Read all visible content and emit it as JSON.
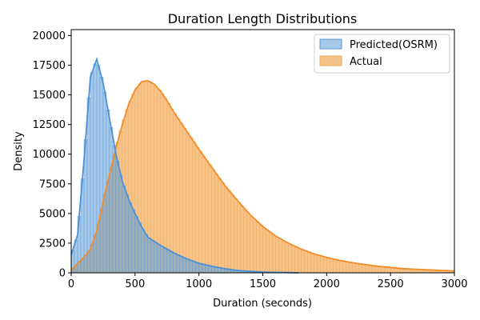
{
  "chart_data": {
    "type": "histogram",
    "title": "Duration Length Distributions",
    "xlabel": "Duration (seconds)",
    "ylabel": "Density",
    "xlim": [
      0,
      3000
    ],
    "ylim": [
      0,
      20500
    ],
    "x_ticks": [
      "0",
      "500",
      "1000",
      "1500",
      "2000",
      "2500",
      "3000"
    ],
    "y_ticks": [
      "0",
      "2500",
      "5000",
      "7500",
      "10000",
      "12500",
      "15000",
      "17500",
      "20000"
    ],
    "legend_position": "top-right",
    "series": [
      {
        "name": "Predicted(OSRM)",
        "fill_color": "#5b9bd5",
        "line_color": "#4a90d9",
        "points": [
          [
            0,
            1500
          ],
          [
            50,
            3200
          ],
          [
            100,
            9500
          ],
          [
            150,
            16500
          ],
          [
            200,
            18000
          ],
          [
            250,
            16000
          ],
          [
            300,
            13000
          ],
          [
            350,
            10000
          ],
          [
            400,
            7700
          ],
          [
            450,
            6200
          ],
          [
            500,
            5000
          ],
          [
            550,
            3900
          ],
          [
            600,
            3000
          ],
          [
            700,
            2300
          ],
          [
            800,
            1700
          ],
          [
            900,
            1200
          ],
          [
            1000,
            800
          ],
          [
            1100,
            550
          ],
          [
            1200,
            350
          ],
          [
            1300,
            200
          ],
          [
            1400,
            120
          ],
          [
            1500,
            70
          ],
          [
            1600,
            40
          ],
          [
            1700,
            20
          ],
          [
            1780,
            0
          ]
        ]
      },
      {
        "name": "Actual",
        "fill_color": "#f0a95a",
        "line_color": "#f28c28",
        "points": [
          [
            0,
            200
          ],
          [
            50,
            800
          ],
          [
            100,
            1300
          ],
          [
            150,
            2000
          ],
          [
            200,
            3500
          ],
          [
            250,
            6000
          ],
          [
            300,
            8300
          ],
          [
            350,
            10500
          ],
          [
            400,
            12500
          ],
          [
            450,
            14200
          ],
          [
            500,
            15400
          ],
          [
            550,
            16100
          ],
          [
            600,
            16200
          ],
          [
            650,
            15900
          ],
          [
            700,
            15300
          ],
          [
            750,
            14500
          ],
          [
            800,
            13600
          ],
          [
            850,
            12800
          ],
          [
            900,
            12000
          ],
          [
            950,
            11200
          ],
          [
            1000,
            10400
          ],
          [
            1100,
            8900
          ],
          [
            1200,
            7400
          ],
          [
            1300,
            6100
          ],
          [
            1400,
            4900
          ],
          [
            1500,
            3900
          ],
          [
            1600,
            3100
          ],
          [
            1700,
            2500
          ],
          [
            1800,
            2000
          ],
          [
            1900,
            1600
          ],
          [
            2000,
            1300
          ],
          [
            2100,
            1050
          ],
          [
            2200,
            850
          ],
          [
            2300,
            700
          ],
          [
            2400,
            550
          ],
          [
            2500,
            450
          ],
          [
            2600,
            350
          ],
          [
            2700,
            300
          ],
          [
            2800,
            250
          ],
          [
            2900,
            200
          ],
          [
            3000,
            160
          ]
        ]
      }
    ],
    "grid": false
  }
}
